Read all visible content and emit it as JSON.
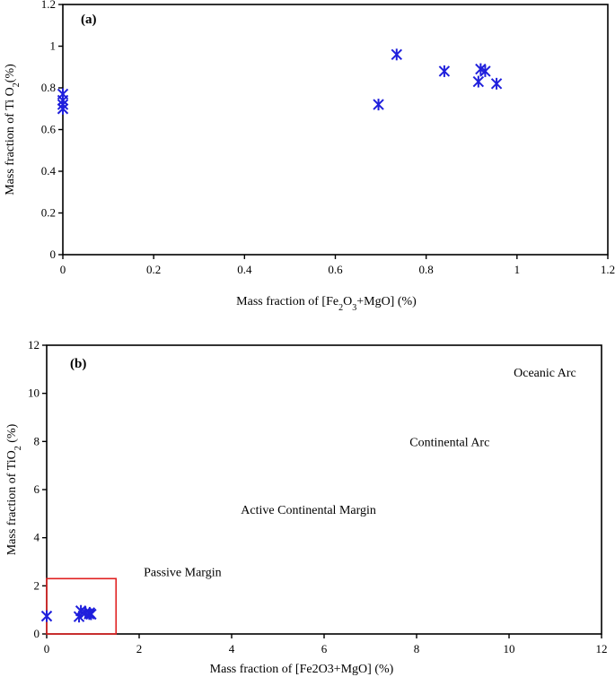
{
  "chart_data": [
    {
      "type": "scatter",
      "panel_label": "(a)",
      "xlabel": "Mass fraction of [Fe2O3+MgO] (%)",
      "ylabel": "Mass fraction of Ti O2(%)",
      "xlim": [
        0,
        1.2
      ],
      "ylim": [
        0,
        1.2
      ],
      "x_ticks": [
        "0",
        "0.2",
        "0.4",
        "0.6",
        "0.8",
        "1",
        "1.2"
      ],
      "y_ticks": [
        "0",
        "0.2",
        "0.4",
        "0.6",
        "0.8",
        "1",
        "1.2"
      ],
      "grid": false,
      "marker_color": "#1f1fdc",
      "points": [
        {
          "x": 0.0,
          "y": 0.7
        },
        {
          "x": 0.0,
          "y": 0.72
        },
        {
          "x": 0.0,
          "y": 0.74
        },
        {
          "x": 0.0,
          "y": 0.77
        },
        {
          "x": 0.695,
          "y": 0.72
        },
        {
          "x": 0.735,
          "y": 0.96
        },
        {
          "x": 0.84,
          "y": 0.88
        },
        {
          "x": 0.915,
          "y": 0.83
        },
        {
          "x": 0.92,
          "y": 0.89
        },
        {
          "x": 0.93,
          "y": 0.88
        },
        {
          "x": 0.955,
          "y": 0.82
        }
      ]
    },
    {
      "type": "scatter",
      "panel_label": "(b)",
      "xlabel": "Mass fraction of [Fe2O3+MgO] (%)",
      "ylabel": "Mass fraction of TiO2 (%)",
      "xlim": [
        0,
        12
      ],
      "ylim": [
        0,
        12
      ],
      "x_ticks": [
        "0",
        "2",
        "4",
        "6",
        "8",
        "10",
        "12"
      ],
      "y_ticks": [
        "0",
        "2",
        "4",
        "6",
        "8",
        "10",
        "12"
      ],
      "grid": false,
      "marker_color": "#1f1fdc",
      "points": [
        {
          "x": 0.0,
          "y": 0.74
        },
        {
          "x": 0.7,
          "y": 0.72
        },
        {
          "x": 0.74,
          "y": 0.96
        },
        {
          "x": 0.84,
          "y": 0.88
        },
        {
          "x": 0.92,
          "y": 0.83
        },
        {
          "x": 0.93,
          "y": 0.88
        },
        {
          "x": 0.96,
          "y": 0.82
        }
      ],
      "regions": [
        {
          "label": "Oceanic Arc",
          "x": 10.1,
          "y": 10.7,
          "color": "#000000"
        },
        {
          "label": "Continental Arc",
          "x": 7.85,
          "y": 7.8,
          "color": "#000000"
        },
        {
          "label": "Active Continental Margin",
          "x": 4.2,
          "y": 5.0,
          "color": "#000000"
        },
        {
          "label": "Passive Margin",
          "x": 2.1,
          "y": 2.4,
          "color": "#e02020"
        }
      ],
      "passive_margin_box": {
        "x0": 0,
        "x1": 1.5,
        "y0": 0,
        "y1": 2.3,
        "color": "#e02020"
      }
    }
  ]
}
